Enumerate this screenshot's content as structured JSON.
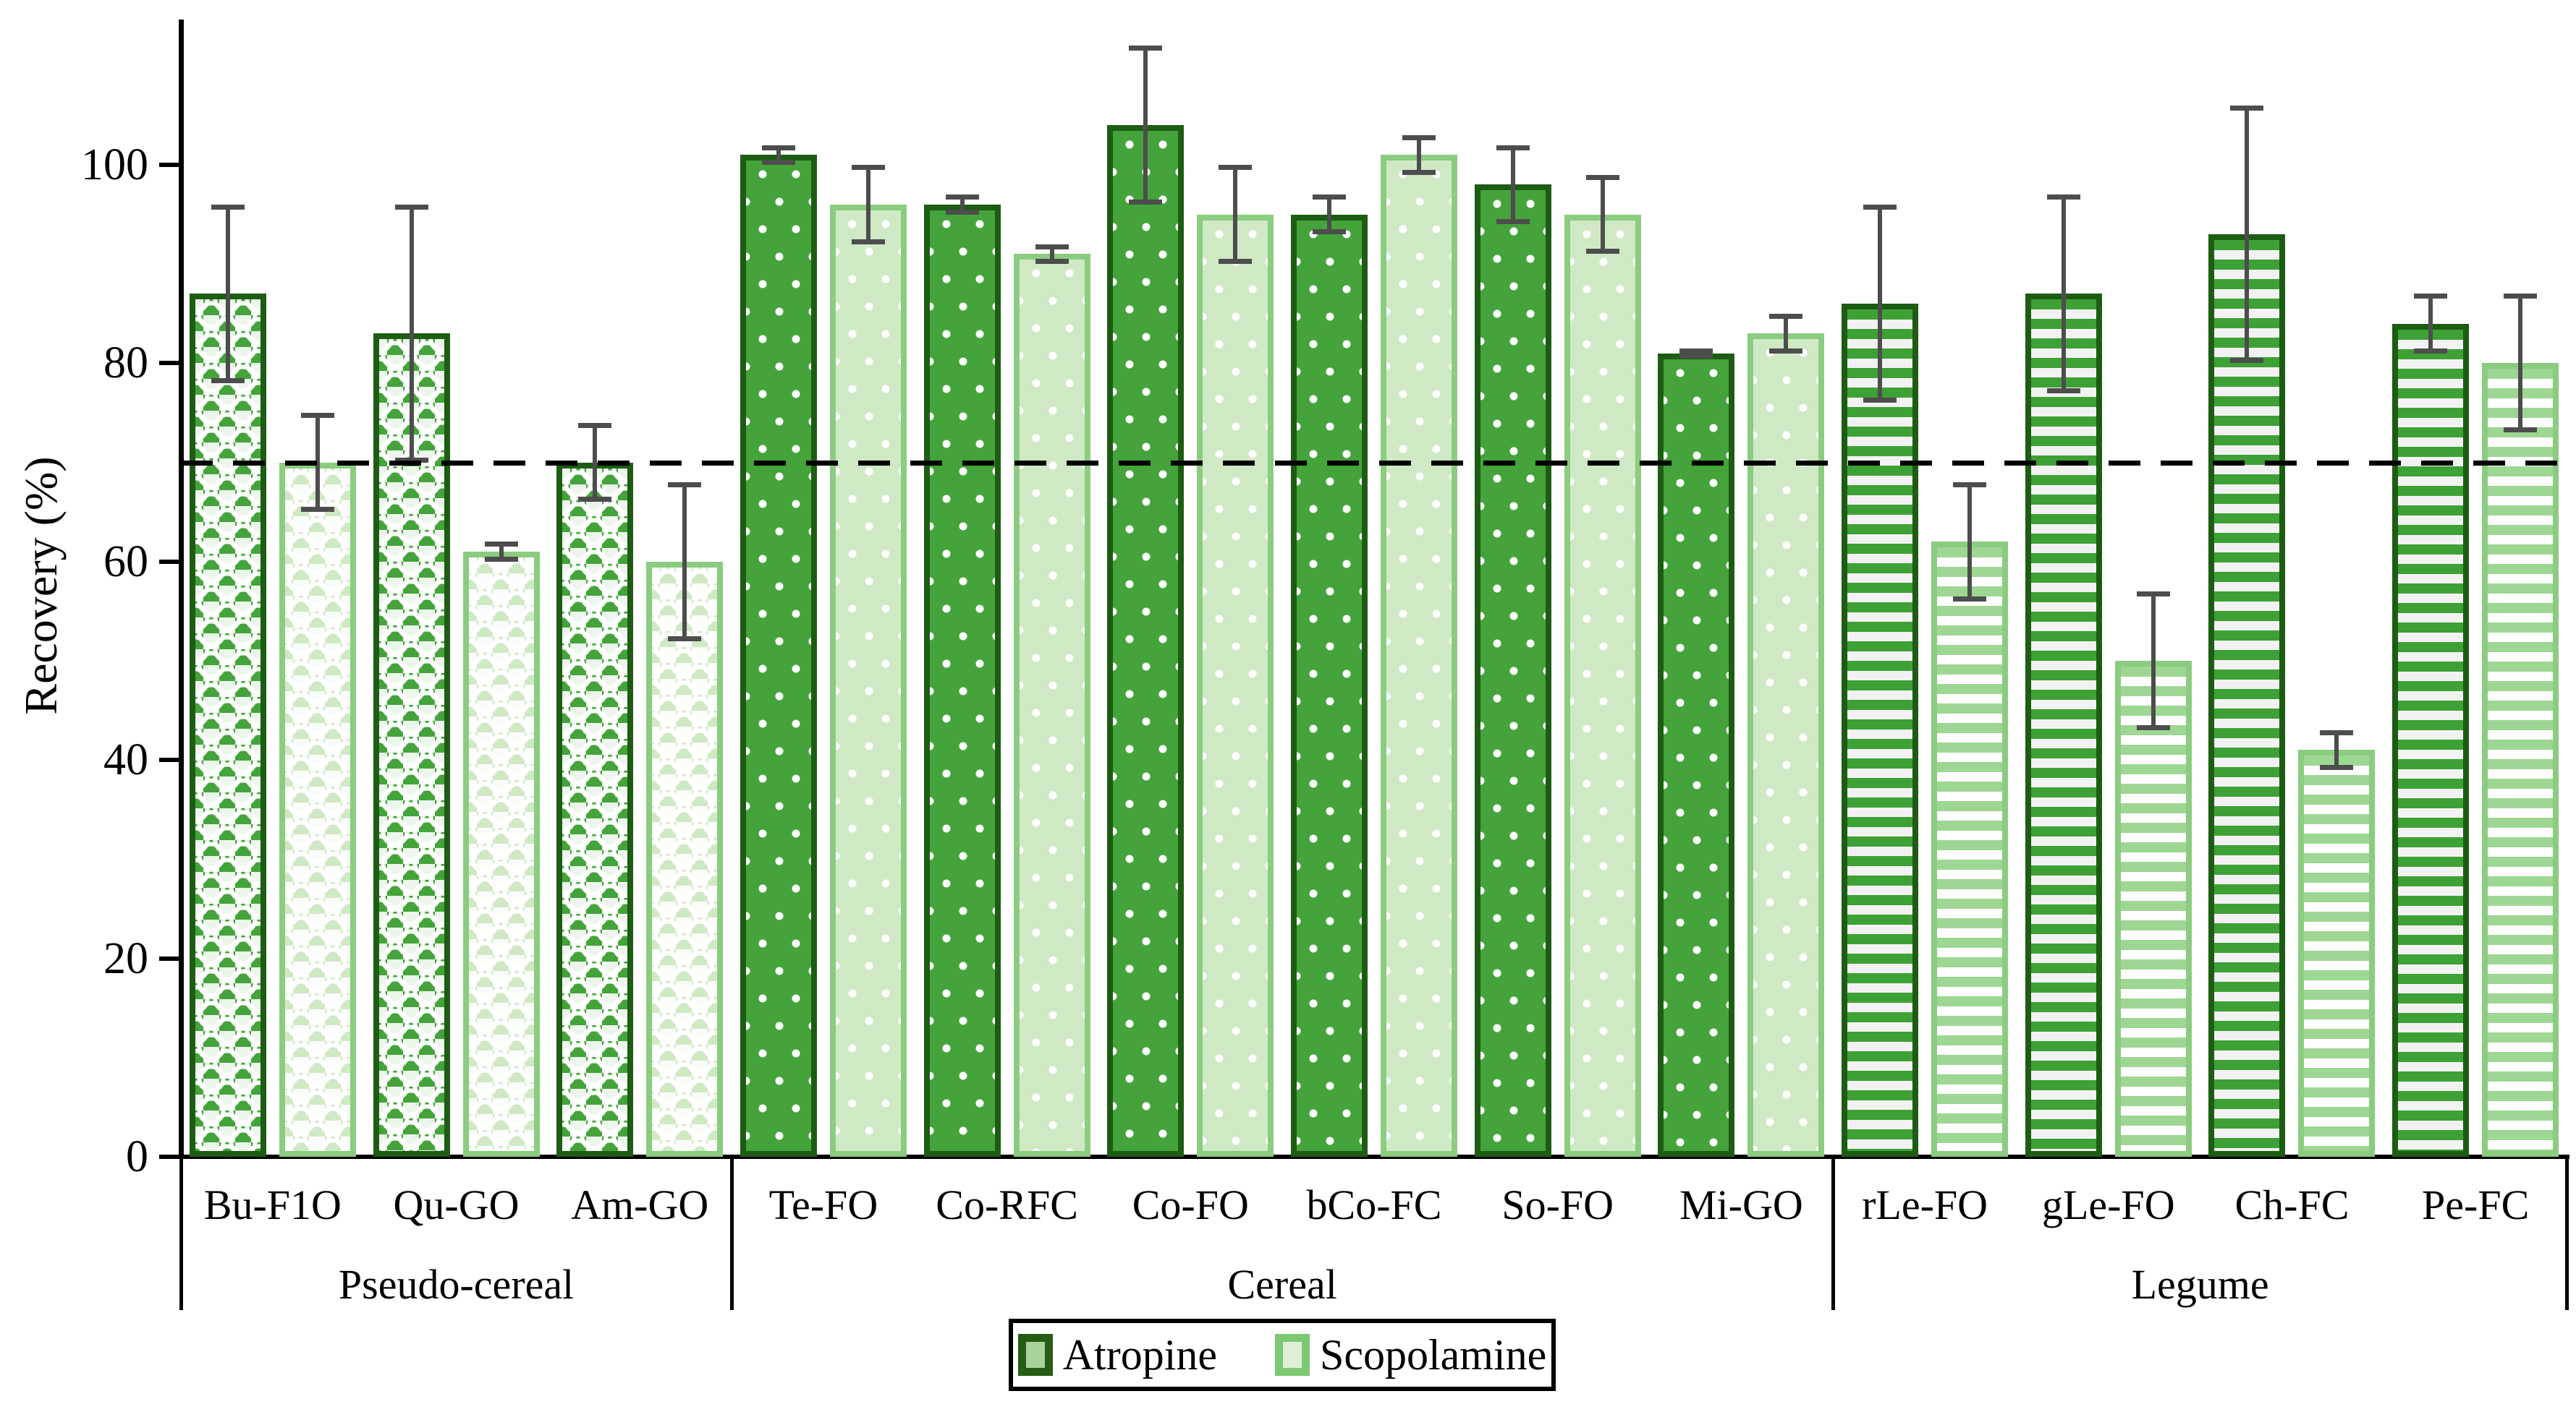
{
  "chart_data": {
    "type": "bar",
    "title": "",
    "xlabel": "",
    "ylabel": "Recovery (%)",
    "ylim": [
      0,
      114
    ],
    "yticks": [
      0,
      20,
      40,
      60,
      80,
      100
    ],
    "grid": false,
    "reference_line": {
      "value": 70,
      "style": "dashed",
      "color": "#000000"
    },
    "legend": {
      "position": "bottom",
      "entries": [
        {
          "name": "Atropine",
          "fill": "#44a33a",
          "border": "#1d5c13"
        },
        {
          "name": "Scopolamine",
          "fill": "#cfe9c4",
          "border": "#8bcc80"
        }
      ]
    },
    "series_names": [
      "Atropine",
      "Scopolamine"
    ],
    "groups": [
      {
        "label": "Pseudo-cereal",
        "pattern": "sphere",
        "categories": [
          {
            "label": "Bu-F1O",
            "atropine": {
              "value": 87,
              "error": 9
            },
            "scopolamine": {
              "value": 70,
              "error": 5
            }
          },
          {
            "label": "Qu-GO",
            "atropine": {
              "value": 83,
              "error": 13
            },
            "scopolamine": {
              "value": 61,
              "error": 1
            }
          },
          {
            "label": "Am-GO",
            "atropine": {
              "value": 70,
              "error": 4
            },
            "scopolamine": {
              "value": 60,
              "error": 8
            }
          }
        ]
      },
      {
        "label": "Cereal",
        "pattern": "dots",
        "categories": [
          {
            "label": "Te-FO",
            "atropine": {
              "value": 101,
              "error": 1
            },
            "scopolamine": {
              "value": 96,
              "error": 4
            }
          },
          {
            "label": "Co-RFC",
            "atropine": {
              "value": 96,
              "error": 1
            },
            "scopolamine": {
              "value": 91,
              "error": 1
            }
          },
          {
            "label": "Co-FO",
            "atropine": {
              "value": 104,
              "error": 8
            },
            "scopolamine": {
              "value": 95,
              "error": 5
            }
          },
          {
            "label": "bCo-FC",
            "atropine": {
              "value": 95,
              "error": 2
            },
            "scopolamine": {
              "value": 101,
              "error": 2
            }
          },
          {
            "label": "So-FO",
            "atropine": {
              "value": 98,
              "error": 4
            },
            "scopolamine": {
              "value": 95,
              "error": 4
            }
          },
          {
            "label": "Mi-GO",
            "atropine": {
              "value": 81,
              "error": 0.5
            },
            "scopolamine": {
              "value": 83,
              "error": 2
            }
          }
        ]
      },
      {
        "label": "Legume",
        "pattern": "hstripes",
        "categories": [
          {
            "label": "rLe-FO",
            "atropine": {
              "value": 86,
              "error": 10
            },
            "scopolamine": {
              "value": 62,
              "error": 6
            }
          },
          {
            "label": "gLe-FO",
            "atropine": {
              "value": 87,
              "error": 10
            },
            "scopolamine": {
              "value": 50,
              "error": 7
            }
          },
          {
            "label": "Ch-FC",
            "atropine": {
              "value": 93,
              "error": 13
            },
            "scopolamine": {
              "value": 41,
              "error": 2
            }
          },
          {
            "label": "Pe-FC",
            "atropine": {
              "value": 84,
              "error": 3
            },
            "scopolamine": {
              "value": 80,
              "error": 7
            }
          }
        ]
      }
    ],
    "colors": {
      "atropine_fill": "#44a33a",
      "atropine_border": "#1d5c13",
      "scopolamine_fill": "#cfe9c4",
      "scopolamine_border": "#8bcc80",
      "legume_dark_stripe": "#3da135",
      "legume_light_stripe": "#9ed693",
      "error_bar": "#4d4d4d",
      "reference_line": "#000000",
      "axis": "#000000"
    }
  }
}
